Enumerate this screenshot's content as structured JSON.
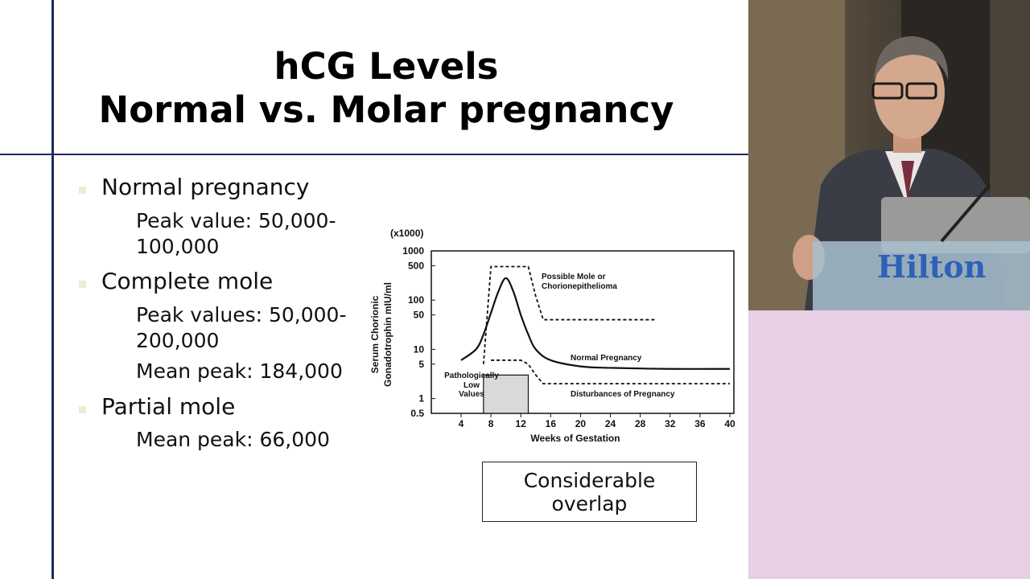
{
  "slide": {
    "title_line1": "hCG Levels",
    "title_line2": "Normal vs. Molar pregnancy",
    "bullets": [
      {
        "label": "Normal pregnancy",
        "sub": [
          "Peak value: 50,000-",
          "100,000"
        ]
      },
      {
        "label": "Complete mole",
        "sub": [
          "Peak values: 50,000-",
          "200,000",
          "Mean peak: 184,000"
        ]
      },
      {
        "label": "Partial mole",
        "sub": [
          "Mean peak: 66,000"
        ]
      }
    ],
    "callout": "Considerable overlap",
    "bullet_color": "#ecedd1",
    "rule_color": "#1c2a5c"
  },
  "video": {
    "podium_sign": "Hilton",
    "background_color": "#e7cfe5"
  },
  "chart_data": {
    "type": "line",
    "title": "",
    "ylabel": "Serum Chorionic Gonadotrophin mIU/ml",
    "ylabel_line1": "Serum Chorionic",
    "ylabel_line2": "Gonadotrophin mIU/ml",
    "y_multiplier": "(x1000)",
    "xlabel": "Weeks of Gestation",
    "y_scale": "log",
    "ylim": [
      0.5,
      1000
    ],
    "xlim": [
      0,
      40
    ],
    "x_ticks": [
      4,
      8,
      12,
      16,
      20,
      24,
      28,
      32,
      36,
      40
    ],
    "y_ticks": [
      1000,
      500,
      100,
      50,
      10,
      5,
      1,
      0.5
    ],
    "grid": false,
    "series": [
      {
        "name": "Normal Pregnancy",
        "style": "solid",
        "x": [
          4,
          6,
          7,
          8,
          9,
          10,
          11,
          12,
          13,
          14,
          16,
          20,
          24,
          32,
          40
        ],
        "y": [
          6,
          10,
          20,
          55,
          150,
          280,
          150,
          50,
          20,
          10,
          6,
          4.5,
          4.2,
          4.0,
          4.0
        ]
      },
      {
        "name": "Possible Mole or Chorionepithelioma",
        "style": "dashed",
        "x": [
          7,
          8,
          10,
          12,
          13,
          14,
          15,
          20,
          30
        ],
        "y": [
          5,
          480,
          480,
          480,
          480,
          120,
          40,
          40,
          40
        ]
      },
      {
        "name": "Disturbances of Pregnancy",
        "style": "dashed",
        "x": [
          8,
          12,
          13,
          14,
          15,
          20,
          30,
          40
        ],
        "y": [
          6,
          6,
          5,
          3,
          2,
          2,
          2,
          2
        ]
      }
    ],
    "annotations": {
      "possible_mole": [
        "Possible Mole or",
        "Chorionepithelioma"
      ],
      "normal": "Normal Pregnancy",
      "disturbances": "Disturbances of Pregnancy",
      "low_values": [
        "Pathologically",
        "Low",
        "Values"
      ]
    },
    "low_region": {
      "x": [
        7,
        13
      ],
      "y": [
        0.5,
        3
      ]
    }
  }
}
